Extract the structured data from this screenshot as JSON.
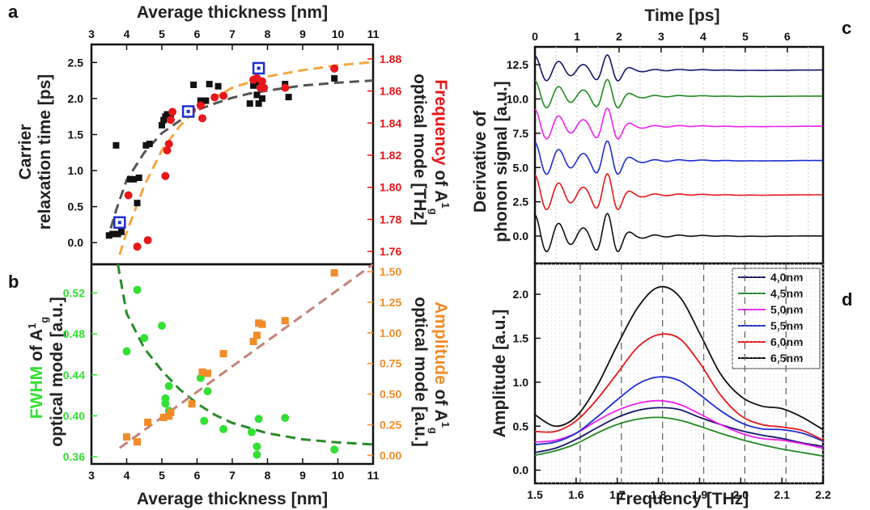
{
  "panel_labels": {
    "a": "a",
    "b": "b",
    "c": "c",
    "d": "d"
  },
  "colors": {
    "black": "#111111",
    "red": "#e8171a",
    "green": "#33e033",
    "orange": "#f28c28",
    "dashed_gray": "#555555",
    "dashed_orange": "#f4a742",
    "dashed_green": "#2a8a2a",
    "dashed_rose": "#c4827a",
    "blue_square": "#1d2fcf"
  },
  "chart_data": [
    {
      "id": "a",
      "type": "scatter",
      "xlabel_top": "Average thickness [nm]",
      "xlim": [
        3,
        11
      ],
      "xticks": [
        "3",
        "4",
        "5",
        "6",
        "7",
        "8",
        "9",
        "10",
        "11"
      ],
      "ylabel_left": [
        "Carrier",
        "relaxation time [ps]"
      ],
      "ylim_left": [
        -0.3,
        2.75
      ],
      "yticks_left": [
        "0.0",
        "0.5",
        "1.0",
        "1.5",
        "2.0",
        "2.5"
      ],
      "ylabel_right": {
        "colored": "Frequency",
        "text1": " of A",
        "sup": "1",
        "sub": "g",
        "text2": "optical mode [THz]"
      },
      "ylim_right": [
        1.752,
        1.889
      ],
      "yticks_right": [
        "1.76",
        "1.78",
        "1.80",
        "1.82",
        "1.84",
        "1.86",
        "1.88"
      ],
      "series": [
        {
          "marker": "black-square",
          "axis": "left",
          "points": [
            [
              3.5,
              0.1
            ],
            [
              3.6,
              0.12
            ],
            [
              3.7,
              1.35
            ],
            [
              3.75,
              0.12
            ],
            [
              3.85,
              0.15
            ],
            [
              4.1,
              0.88
            ],
            [
              4.2,
              0.88
            ],
            [
              4.3,
              0.55
            ],
            [
              4.35,
              0.9
            ],
            [
              4.55,
              1.35
            ],
            [
              4.65,
              1.37
            ],
            [
              5.0,
              1.63
            ],
            [
              5.05,
              1.7
            ],
            [
              5.1,
              1.75
            ],
            [
              5.15,
              1.78
            ],
            [
              5.25,
              1.78
            ],
            [
              5.8,
              1.83
            ],
            [
              5.9,
              2.19
            ],
            [
              6.1,
              1.97
            ],
            [
              6.25,
              1.97
            ],
            [
              6.35,
              2.2
            ],
            [
              6.6,
              2.17
            ],
            [
              7.5,
              1.93
            ],
            [
              7.6,
              2.18
            ],
            [
              7.65,
              2.22
            ],
            [
              7.7,
              2.05
            ],
            [
              7.75,
              1.93
            ],
            [
              7.8,
              2.2
            ],
            [
              7.85,
              2.0
            ],
            [
              8.5,
              2.2
            ],
            [
              8.6,
              2.02
            ],
            [
              9.9,
              2.28
            ]
          ]
        },
        {
          "marker": "red-circle",
          "axis": "right",
          "points": [
            [
              4.05,
              1.795
            ],
            [
              4.3,
              1.763
            ],
            [
              4.6,
              1.767
            ],
            [
              5.1,
              1.807
            ],
            [
              5.15,
              1.823
            ],
            [
              5.2,
              1.827
            ],
            [
              5.25,
              1.842
            ],
            [
              5.3,
              1.847
            ],
            [
              5.85,
              1.848
            ],
            [
              6.1,
              1.851
            ],
            [
              6.15,
              1.843
            ],
            [
              6.5,
              1.856
            ],
            [
              6.75,
              1.857
            ],
            [
              7.6,
              1.867
            ],
            [
              7.7,
              1.868
            ],
            [
              7.8,
              1.862
            ],
            [
              7.85,
              1.866
            ],
            [
              7.9,
              1.862
            ],
            [
              8.5,
              1.862
            ],
            [
              9.9,
              1.874
            ]
          ]
        },
        {
          "marker": "blue-open-square",
          "axis": "left",
          "points": [
            [
              3.8,
              0.28
            ],
            [
              5.75,
              1.82
            ],
            [
              7.75,
              2.42
            ]
          ]
        }
      ],
      "fits": [
        {
          "color": "dashed_gray",
          "axis": "left",
          "points": [
            [
              3.55,
              0.2
            ],
            [
              3.7,
              0.45
            ],
            [
              4.0,
              0.87
            ],
            [
              4.5,
              1.25
            ],
            [
              5.0,
              1.52
            ],
            [
              5.5,
              1.69
            ],
            [
              6.0,
              1.84
            ],
            [
              6.5,
              1.93
            ],
            [
              7.0,
              2.01
            ],
            [
              7.5,
              2.07
            ],
            [
              8.0,
              2.11
            ],
            [
              9.0,
              2.18
            ],
            [
              10.0,
              2.22
            ],
            [
              11.0,
              2.25
            ]
          ]
        },
        {
          "color": "dashed_orange",
          "axis": "right",
          "points": [
            [
              3.8,
              1.758
            ],
            [
              4.0,
              1.772
            ],
            [
              4.5,
              1.801
            ],
            [
              5.0,
              1.823
            ],
            [
              5.5,
              1.838
            ],
            [
              6.0,
              1.849
            ],
            [
              6.5,
              1.856
            ],
            [
              7.0,
              1.862
            ],
            [
              8.0,
              1.869
            ],
            [
              9.0,
              1.873
            ],
            [
              10.0,
              1.876
            ],
            [
              11.0,
              1.878
            ]
          ]
        }
      ]
    },
    {
      "id": "b",
      "type": "scatter",
      "xlabel": "Average thickness [nm]",
      "xlim": [
        3,
        11
      ],
      "xticks": [
        "3",
        "4",
        "5",
        "6",
        "7",
        "8",
        "9",
        "10",
        "11"
      ],
      "ylabel_left": {
        "colored": "FWHM",
        "text1": " of A",
        "sup": "1",
        "sub": "g",
        "text2": "optical mode [a.u.]"
      },
      "ylim_left": [
        0.353,
        0.548
      ],
      "yticks_left": [
        "0.36",
        "0.40",
        "0.44",
        "0.48",
        "0.52"
      ],
      "ylabel_right": {
        "colored": "Amplitude",
        "text1": " of A",
        "sup": "1",
        "sub": "g",
        "text2": "optical mode [a.u.]"
      },
      "ylim_right": [
        -0.07,
        1.56
      ],
      "yticks_right": [
        "0.00",
        "0.25",
        "0.50",
        "0.75",
        "1.00",
        "1.25",
        "1.50"
      ],
      "series": [
        {
          "marker": "green-circle",
          "axis": "left",
          "points": [
            [
              4.0,
              0.463
            ],
            [
              4.3,
              0.523
            ],
            [
              4.5,
              0.476
            ],
            [
              5.0,
              0.488
            ],
            [
              5.1,
              0.417
            ],
            [
              5.2,
              0.429
            ],
            [
              5.1,
              0.412
            ],
            [
              5.2,
              0.405
            ],
            [
              6.1,
              0.437
            ],
            [
              6.2,
              0.395
            ],
            [
              6.3,
              0.424
            ],
            [
              6.75,
              0.387
            ],
            [
              7.55,
              0.384
            ],
            [
              7.75,
              0.397
            ],
            [
              7.7,
              0.37
            ],
            [
              7.7,
              0.362
            ],
            [
              8.5,
              0.398
            ],
            [
              9.9,
              0.367
            ]
          ]
        },
        {
          "marker": "orange-square",
          "axis": "right",
          "points": [
            [
              4.0,
              0.15
            ],
            [
              4.3,
              0.11
            ],
            [
              4.6,
              0.27
            ],
            [
              5.05,
              0.31
            ],
            [
              5.2,
              0.32
            ],
            [
              5.25,
              0.35
            ],
            [
              5.85,
              0.42
            ],
            [
              6.15,
              0.68
            ],
            [
              6.3,
              0.67
            ],
            [
              6.75,
              0.83
            ],
            [
              7.6,
              0.93
            ],
            [
              7.7,
              0.98
            ],
            [
              7.75,
              1.08
            ],
            [
              7.85,
              1.07
            ],
            [
              8.5,
              1.1
            ],
            [
              9.9,
              1.49
            ]
          ]
        }
      ],
      "fits": [
        {
          "color": "dashed_green",
          "axis": "left",
          "points": [
            [
              3.75,
              0.548
            ],
            [
              4.0,
              0.5
            ],
            [
              4.5,
              0.466
            ],
            [
              5.0,
              0.444
            ],
            [
              5.5,
              0.426
            ],
            [
              6.0,
              0.412
            ],
            [
              6.5,
              0.401
            ],
            [
              7.0,
              0.393
            ],
            [
              8.0,
              0.383
            ],
            [
              9.0,
              0.377
            ],
            [
              10.0,
              0.374
            ],
            [
              11.0,
              0.372
            ]
          ]
        },
        {
          "color": "dashed_rose",
          "axis": "right",
          "points": [
            [
              3.8,
              0.06
            ],
            [
              11.0,
              1.56
            ]
          ]
        }
      ]
    },
    {
      "id": "c",
      "type": "line",
      "xlabel_top": "Time [ps]",
      "xlim": [
        0,
        6.85
      ],
      "xticks": [
        "0",
        "1",
        "2",
        "3",
        "4",
        "5",
        "6"
      ],
      "ylabel": [
        "Derivative of",
        "phonon signal [a.u.]"
      ],
      "ylim": [
        -2.0,
        13.8
      ],
      "yticks": [
        "0.0",
        "2.5",
        "5.0",
        "7.5",
        "10.0",
        "12.5"
      ],
      "offsets": [
        0,
        3,
        5.5,
        8,
        10.2,
        12.1
      ],
      "colors": [
        "#111111",
        "#e8171a",
        "#1d2fcf",
        "#ee22ee",
        "#238a23",
        "#16166e"
      ]
    },
    {
      "id": "d",
      "type": "line",
      "xlabel": "Frequency [THz]",
      "xlim": [
        1.5,
        2.2
      ],
      "xticks": [
        "1.5",
        "1.6",
        "1.7",
        "1.8",
        "1.9",
        "2.0",
        "2.1",
        "2.2"
      ],
      "ylabel": "Amplitude [a.u.]",
      "ylim": [
        -0.15,
        2.35
      ],
      "yticks": [
        "0.0",
        "0.5",
        "1.0",
        "1.5",
        "2.0"
      ],
      "legend_position": "top-right",
      "series": [
        {
          "name": "4,0nm",
          "color": "#16166e",
          "x": [
            1.5,
            1.55,
            1.6,
            1.65,
            1.7,
            1.75,
            1.8,
            1.85,
            1.9,
            1.95,
            2.0,
            2.05,
            2.1,
            2.15,
            2.2
          ],
          "values": [
            0.2,
            0.25,
            0.35,
            0.48,
            0.6,
            0.68,
            0.71,
            0.69,
            0.6,
            0.52,
            0.45,
            0.4,
            0.36,
            0.31,
            0.27
          ]
        },
        {
          "name": "4,5nm",
          "color": "#238a23",
          "x": [
            1.5,
            1.55,
            1.6,
            1.65,
            1.7,
            1.75,
            1.8,
            1.85,
            1.9,
            1.95,
            2.0,
            2.05,
            2.1,
            2.15,
            2.2
          ],
          "values": [
            0.17,
            0.22,
            0.3,
            0.42,
            0.52,
            0.58,
            0.6,
            0.57,
            0.5,
            0.42,
            0.35,
            0.29,
            0.24,
            0.2,
            0.16
          ]
        },
        {
          "name": "5,0nm",
          "color": "#ee22ee",
          "x": [
            1.5,
            1.55,
            1.6,
            1.65,
            1.7,
            1.75,
            1.8,
            1.85,
            1.9,
            1.95,
            2.0,
            2.05,
            2.1,
            2.15,
            2.2
          ],
          "values": [
            0.32,
            0.34,
            0.42,
            0.56,
            0.68,
            0.76,
            0.79,
            0.75,
            0.64,
            0.52,
            0.42,
            0.36,
            0.34,
            0.3,
            0.25
          ]
        },
        {
          "name": "5,5nm",
          "color": "#1d2fcf",
          "x": [
            1.5,
            1.55,
            1.6,
            1.65,
            1.7,
            1.75,
            1.8,
            1.85,
            1.9,
            1.95,
            2.0,
            2.05,
            2.1,
            2.15,
            2.2
          ],
          "values": [
            0.29,
            0.32,
            0.42,
            0.6,
            0.8,
            0.98,
            1.06,
            1.02,
            0.86,
            0.68,
            0.54,
            0.47,
            0.46,
            0.42,
            0.33
          ]
        },
        {
          "name": "6,0nm",
          "color": "#e8171a",
          "x": [
            1.5,
            1.55,
            1.6,
            1.65,
            1.7,
            1.75,
            1.8,
            1.85,
            1.9,
            1.95,
            2.0,
            2.05,
            2.1,
            2.15,
            2.2
          ],
          "values": [
            0.44,
            0.44,
            0.56,
            0.8,
            1.1,
            1.4,
            1.54,
            1.5,
            1.22,
            0.86,
            0.62,
            0.52,
            0.49,
            0.45,
            0.34
          ]
        },
        {
          "name": "6,5nm",
          "color": "#111111",
          "x": [
            1.5,
            1.55,
            1.6,
            1.65,
            1.7,
            1.75,
            1.8,
            1.85,
            1.9,
            1.95,
            2.0,
            2.05,
            2.1,
            2.15,
            2.2
          ],
          "values": [
            0.63,
            0.5,
            0.61,
            0.95,
            1.42,
            1.85,
            2.08,
            1.98,
            1.56,
            1.1,
            0.84,
            0.73,
            0.7,
            0.6,
            0.46
          ]
        }
      ]
    }
  ]
}
